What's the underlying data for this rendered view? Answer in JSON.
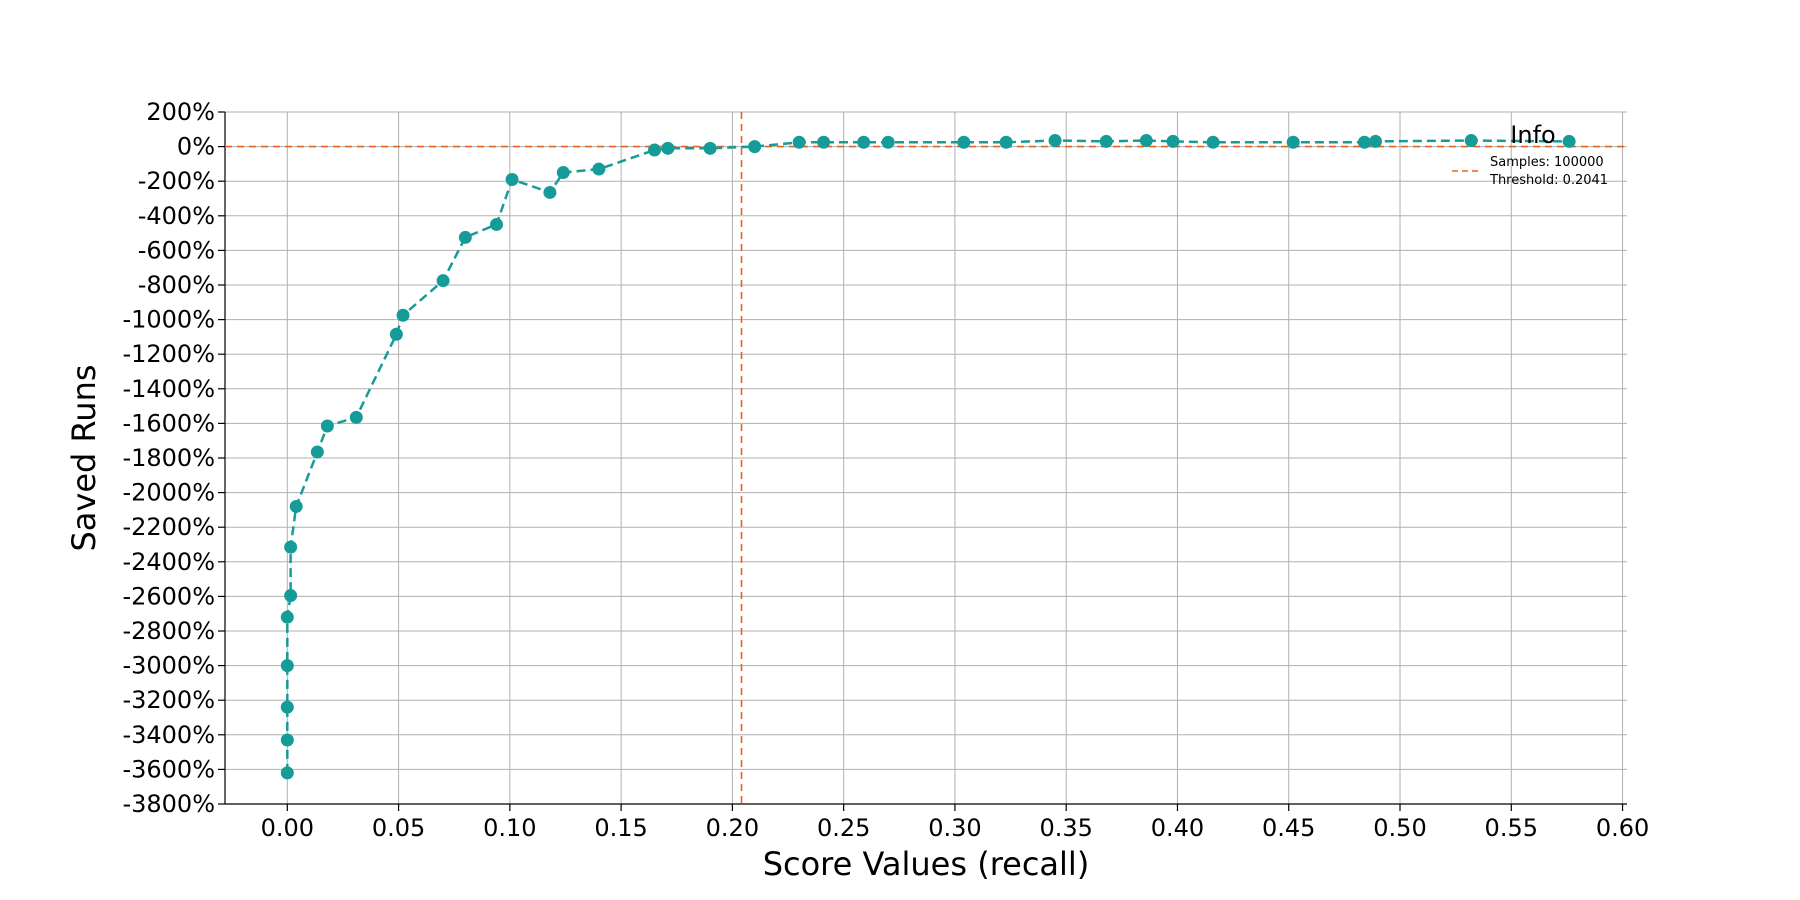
{
  "chart_data": {
    "type": "line",
    "xlabel": "Score Values (recall)",
    "ylabel": "Saved Runs",
    "xlim": [
      -0.028,
      0.602
    ],
    "ylim": [
      -3800,
      200
    ],
    "x_ticks": [
      0.0,
      0.05,
      0.1,
      0.15,
      0.2,
      0.25,
      0.3,
      0.35,
      0.4,
      0.45,
      0.5,
      0.55,
      0.6
    ],
    "x_tick_labels": [
      "0.00",
      "0.05",
      "0.10",
      "0.15",
      "0.20",
      "0.25",
      "0.30",
      "0.35",
      "0.40",
      "0.45",
      "0.50",
      "0.55",
      "0.60"
    ],
    "y_ticks": [
      200,
      0,
      -200,
      -400,
      -600,
      -800,
      -1000,
      -1200,
      -1400,
      -1600,
      -1800,
      -2000,
      -2200,
      -2400,
      -2600,
      -2800,
      -3000,
      -3200,
      -3400,
      -3600,
      -3800
    ],
    "y_tick_labels": [
      "200%",
      "0%",
      "-200%",
      "-400%",
      "-600%",
      "-800%",
      "-1000%",
      "-1200%",
      "-1400%",
      "-1600%",
      "-1800%",
      "-2000%",
      "-2200%",
      "-2400%",
      "-2600%",
      "-2800%",
      "-3000%",
      "-3200%",
      "-3400%",
      "-3600%",
      "-3800%"
    ],
    "grid": true,
    "series": [
      {
        "color": "#169c98",
        "line_style": "dashed",
        "marker": "circle",
        "x": [
          0.0,
          0.0,
          0.0,
          0.0,
          0.0,
          0.0015,
          0.0015,
          0.004,
          0.0135,
          0.018,
          0.031,
          0.049,
          0.052,
          0.07,
          0.08,
          0.094,
          0.101,
          0.118,
          0.124,
          0.14,
          0.165,
          0.171,
          0.19,
          0.21,
          0.23,
          0.241,
          0.259,
          0.27,
          0.304,
          0.323,
          0.345,
          0.368,
          0.386,
          0.398,
          0.416,
          0.452,
          0.484,
          0.489,
          0.532,
          0.576
        ],
        "y": [
          -3620,
          -3430,
          -3240,
          -3000,
          -2720,
          -2595,
          -2315,
          -2080,
          -1765,
          -1615,
          -1565,
          -1085,
          -975,
          -775,
          -525,
          -450,
          -190,
          -265,
          -150,
          -130,
          -20,
          -10,
          -10,
          0,
          25,
          25,
          25,
          25,
          25,
          25,
          35,
          30,
          35,
          30,
          25,
          25,
          25,
          30,
          35,
          30
        ]
      }
    ],
    "reference_lines": [
      {
        "orientation": "horizontal",
        "value": 0,
        "color": "#e8641c",
        "line_style": "dashed"
      },
      {
        "orientation": "vertical",
        "value": 0.2041,
        "color": "#e8641c",
        "line_style": "dashed"
      }
    ],
    "legend": {
      "title": "Info",
      "placement": "top-right",
      "entries": [
        "Samples: 100000",
        "Threshold: 0.2041"
      ],
      "handle_color": "#e8641c"
    }
  }
}
